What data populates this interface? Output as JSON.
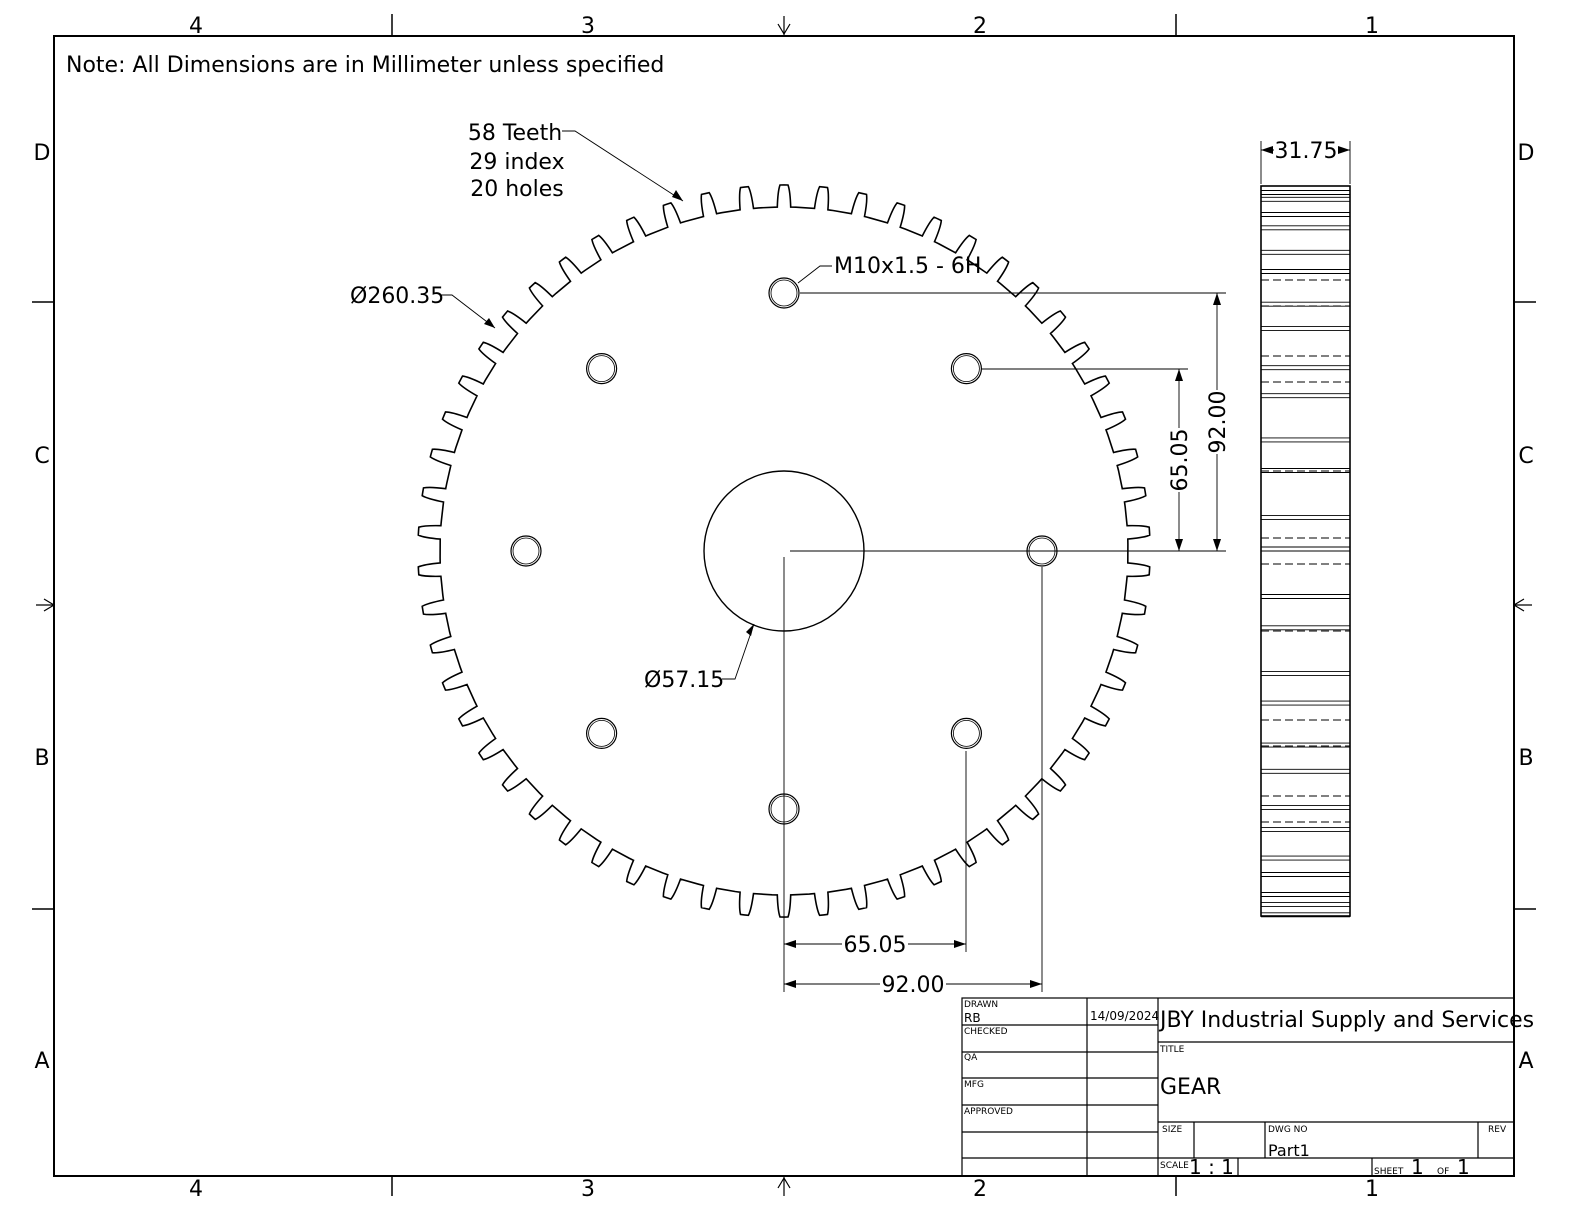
{
  "sheet": {
    "zone_columns_top": [
      "4",
      "3",
      "2",
      "1"
    ],
    "zone_columns_bottom": [
      "4",
      "3",
      "2",
      "1"
    ],
    "zone_rows_left": [
      "D",
      "C",
      "B",
      "A"
    ],
    "zone_rows_right": [
      "D",
      "C",
      "B",
      "A"
    ]
  },
  "note": "Note: All Dimensions are in Millimeter unless specified",
  "callouts": {
    "teeth_line1": "58 Teeth",
    "teeth_line2": "29 index",
    "teeth_line3": "20 holes",
    "outer_diameter": "Ø260.35",
    "bore_diameter": "Ø57.15",
    "thread": "M10x1.5 - 6H"
  },
  "dimensions": {
    "v_92": "92.00",
    "v_65": "65.05",
    "h_65": "65.05",
    "h_92": "92.00",
    "width": "31.75"
  },
  "gear": {
    "teeth": 58,
    "holes_visible": 8,
    "color": "#000000"
  },
  "title_block": {
    "drawn_label": "DRAWN",
    "drawn_by": "RB",
    "drawn_date": "14/09/2024",
    "checked_label": "CHECKED",
    "qa_label": "QA",
    "mfg_label": "MFG",
    "approved_label": "APPROVED",
    "company": "JBY Industrial Supply and Services",
    "title_label": "TITLE",
    "title": "GEAR",
    "size_label": "SIZE",
    "dwgno_label": "DWG NO",
    "dwgno": "Part1",
    "rev_label": "REV",
    "scale_label": "SCALE",
    "scale": "1 : 1",
    "sheet_label": "SHEET",
    "sheet_no": "1",
    "of_label": "OF",
    "sheet_total": "1"
  }
}
